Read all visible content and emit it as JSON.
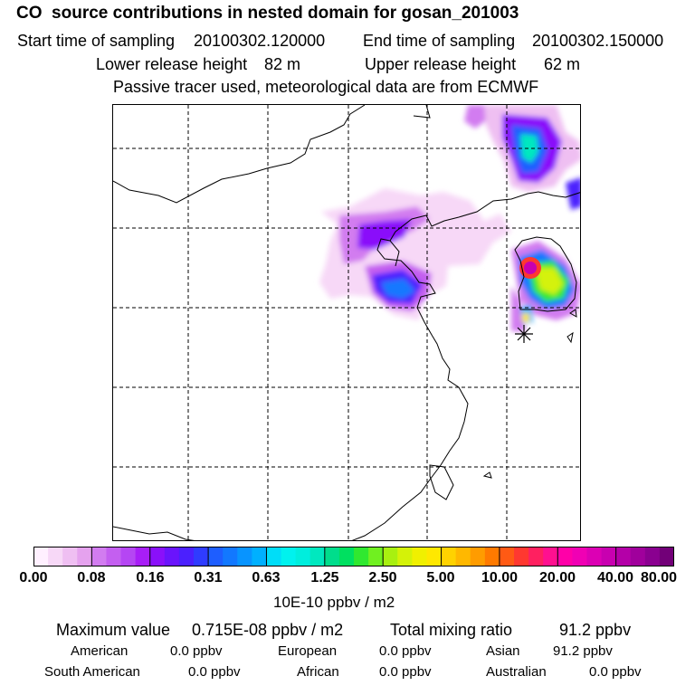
{
  "header": {
    "title": "CO  source contributions in nested domain for gosan_201003",
    "start_label": "Start time of sampling",
    "start_value": "20100302.120000",
    "end_label": "End time of sampling",
    "end_value": "20100302.150000",
    "lower_label": "Lower release height",
    "lower_value": "82 m",
    "upper_label": "Upper release height",
    "upper_value": "62 m",
    "note": "Passive tracer used, meteorological data are from ECMWF"
  },
  "colorbar": {
    "ticks": [
      "0.00",
      "0.08",
      "0.16",
      "0.31",
      "0.63",
      "1.25",
      "2.50",
      "5.00",
      "10.00",
      "20.00",
      "40.00",
      "80.00"
    ],
    "unit": "10E-10 ppbv / m2",
    "colors": [
      "#fff0ff",
      "#f7d8f7",
      "#efbff2",
      "#e5a2ee",
      "#d27cf0",
      "#c45ff0",
      "#b546f3",
      "#a81ef7",
      "#8a10fa",
      "#6a14fc",
      "#4b20fe",
      "#2f3cff",
      "#1e5eff",
      "#1278ff",
      "#0894ff",
      "#00b0ff",
      "#00ddf8",
      "#00f2ee",
      "#00eedd",
      "#00e8bf",
      "#00dd8c",
      "#00e060",
      "#30e830",
      "#70f020",
      "#a8f010",
      "#d4f208",
      "#f0f000",
      "#ffe800",
      "#ffd200",
      "#ffb800",
      "#ff9c00",
      "#ff7a00",
      "#ff5a14",
      "#ff3830",
      "#ff2060",
      "#ff1090",
      "#ff00a8",
      "#f000b4",
      "#dc00b4",
      "#c800b0",
      "#b400a8",
      "#a0009c",
      "#8a0090",
      "#720078"
    ]
  },
  "stats": {
    "max_label": "Maximum value",
    "max_value": "0.715E-08 ppbv / m2",
    "total_label": "Total mixing ratio",
    "total_value": "91.2 ppbv",
    "american_label": "American",
    "american_value": "0.0 ppbv",
    "european_label": "European",
    "european_value": "0.0 ppbv",
    "asian_label": "Asian",
    "asian_value": "91.2 ppbv",
    "south_american_label": "South American",
    "south_american_value": "0.0 ppbv",
    "african_label": "African",
    "african_value": "0.0 ppbv",
    "australian_label": "Australian",
    "australian_value": "0.0 ppbv"
  }
}
